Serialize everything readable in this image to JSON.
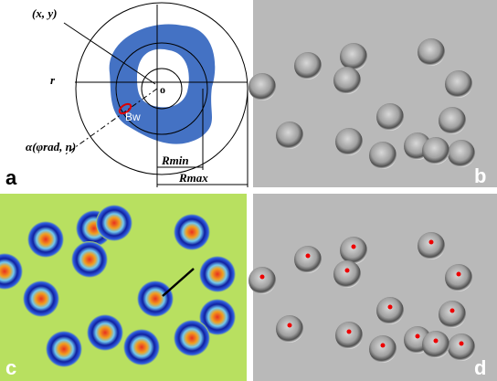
{
  "panel_a": {
    "label": "a",
    "point_label": "(x, y)",
    "radius_label": "r",
    "center_label": "o",
    "band_label": "Bw",
    "angle_label": "α(φrad, n)",
    "rmin_label": "Rmin",
    "rmax_label": "Rmax"
  },
  "panel_b": {
    "label": "b"
  },
  "panel_c": {
    "label": "c"
  },
  "panel_d": {
    "label": "d"
  }
}
